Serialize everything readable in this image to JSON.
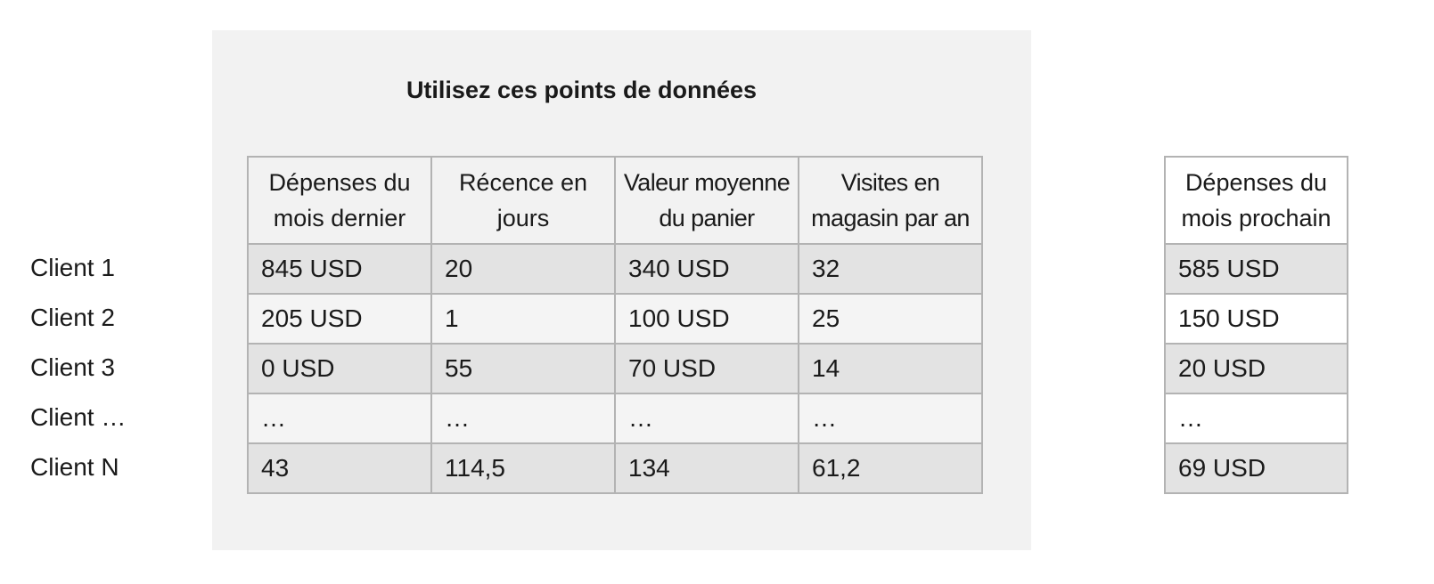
{
  "title": "Utilisez ces points de données",
  "features": {
    "headers": [
      "Dépenses du\nmois dernier",
      "Récence en\njours",
      "Valeur moyenne\ndu panier",
      "Visites en\nmagasin par an"
    ],
    "rows": [
      [
        "845 USD",
        "20",
        "340 USD",
        "32"
      ],
      [
        "205 USD",
        "1",
        "100 USD",
        "25"
      ],
      [
        "0 USD",
        "55",
        "70 USD",
        "14"
      ],
      [
        "…",
        "…",
        "…",
        "…"
      ],
      [
        "43",
        "114,5",
        "134",
        "61,2"
      ]
    ]
  },
  "target": {
    "header": "Dépenses du\nmois prochain",
    "rows": [
      "585 USD",
      "150 USD",
      "20 USD",
      "…",
      "69 USD"
    ]
  },
  "clients": [
    "Client 1",
    "Client 2",
    "Client 3",
    "Client …",
    "Client N"
  ],
  "colors": {
    "panel_background": "#f2f2f2",
    "row_shaded": "#e3e3e3",
    "border": "#b3b3b3"
  }
}
